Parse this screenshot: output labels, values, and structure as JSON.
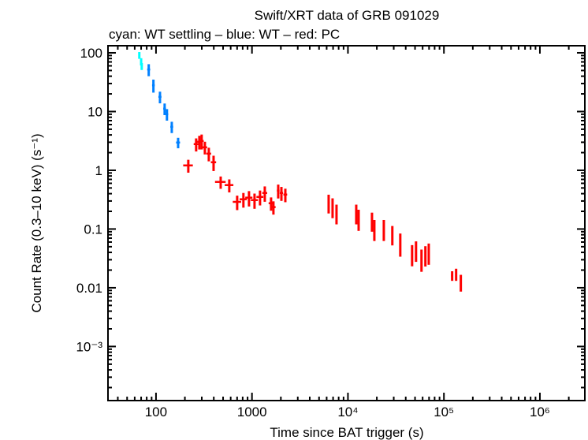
{
  "chart_data": {
    "type": "scatter",
    "title": "Swift/XRT data of GRB 091029",
    "subtitle": "cyan: WT settling – blue: WT – red: PC",
    "xlabel": "Time since BAT trigger (s)",
    "ylabel": "Count Rate (0.3–10 keV) (s⁻¹)",
    "xscale": "log",
    "yscale": "log",
    "xlim": [
      31.6,
      2940000
    ],
    "ylim": [
      0.00012,
      132
    ],
    "grid": false,
    "x_ticks": [
      {
        "value": 100,
        "label": "100"
      },
      {
        "value": 1000,
        "label": "1000"
      },
      {
        "value": 10000,
        "label": "10⁴"
      },
      {
        "value": 100000,
        "label": "10⁵"
      },
      {
        "value": 1000000,
        "label": "10⁶"
      }
    ],
    "y_ticks": [
      {
        "value": 100,
        "label": "100"
      },
      {
        "value": 10,
        "label": "10"
      },
      {
        "value": 1,
        "label": "1"
      },
      {
        "value": 0.1,
        "label": "0.1"
      },
      {
        "value": 0.01,
        "label": "0.01"
      },
      {
        "value": 0.001,
        "label": "10⁻³"
      }
    ],
    "series": [
      {
        "name": "WT settling",
        "color": "#00ffff",
        "points": [
          [
            67,
            91,
            1.5,
            12
          ],
          [
            70,
            71,
            1.5,
            10
          ],
          [
            71,
            59,
            1.5,
            8
          ]
        ]
      },
      {
        "name": "WT",
        "color": "#0080ff",
        "points": [
          [
            84,
            52,
            3,
            12
          ],
          [
            94,
            28,
            3,
            7
          ],
          [
            110,
            17.8,
            4,
            4
          ],
          [
            123,
            11.2,
            4,
            2.5
          ],
          [
            130,
            9.0,
            4,
            2
          ],
          [
            146,
            5.5,
            5,
            1.2
          ],
          [
            170,
            2.97,
            8,
            0.6
          ]
        ]
      },
      {
        "name": "PC",
        "color": "#ff0000",
        "points": [
          [
            217,
            1.21,
            25,
            0.3
          ],
          [
            262,
            2.79,
            15,
            0.7
          ],
          [
            283,
            3.06,
            15,
            0.8
          ],
          [
            299,
            3.16,
            15,
            0.9
          ],
          [
            323,
            2.46,
            18,
            0.6
          ],
          [
            355,
            1.92,
            20,
            0.5
          ],
          [
            398,
            1.37,
            25,
            0.4
          ],
          [
            472,
            0.634,
            60,
            0.15
          ],
          [
            580,
            0.56,
            60,
            0.14
          ],
          [
            701,
            0.29,
            70,
            0.08
          ],
          [
            814,
            0.321,
            70,
            0.09
          ],
          [
            931,
            0.342,
            80,
            0.1
          ],
          [
            1063,
            0.311,
            90,
            0.09
          ],
          [
            1213,
            0.352,
            100,
            0.1
          ],
          [
            1360,
            0.411,
            80,
            0.12
          ],
          [
            1581,
            0.275,
            90,
            0.07
          ],
          [
            1673,
            0.236,
            90,
            0.06
          ],
          [
            1877,
            0.451,
            60,
            0.12
          ],
          [
            2026,
            0.411,
            80,
            0.11
          ],
          [
            2226,
            0.386,
            100,
            0.1
          ],
          [
            6293,
            0.284,
            150,
            0.1
          ],
          [
            6914,
            0.243,
            150,
            0.09
          ],
          [
            7601,
            0.19,
            150,
            0.07
          ],
          [
            12200,
            0.19,
            250,
            0.07
          ],
          [
            12920,
            0.153,
            250,
            0.06
          ],
          [
            17800,
            0.14,
            300,
            0.05
          ],
          [
            18840,
            0.1025,
            300,
            0.04
          ],
          [
            23640,
            0.1025,
            400,
            0.04
          ],
          [
            29000,
            0.0826,
            500,
            0.03
          ],
          [
            35100,
            0.0588,
            500,
            0.025
          ],
          [
            46600,
            0.0382,
            700,
            0.015
          ],
          [
            51200,
            0.0446,
            800,
            0.017
          ],
          [
            58400,
            0.0317,
            900,
            0.013
          ],
          [
            64100,
            0.037,
            1000,
            0.014
          ],
          [
            69500,
            0.0406,
            1000,
            0.016
          ],
          [
            121800,
            0.0161,
            3000,
            0.003
          ],
          [
            134000,
            0.0171,
            3000,
            0.004
          ],
          [
            150000,
            0.0126,
            2500,
            0.004
          ]
        ]
      }
    ]
  }
}
